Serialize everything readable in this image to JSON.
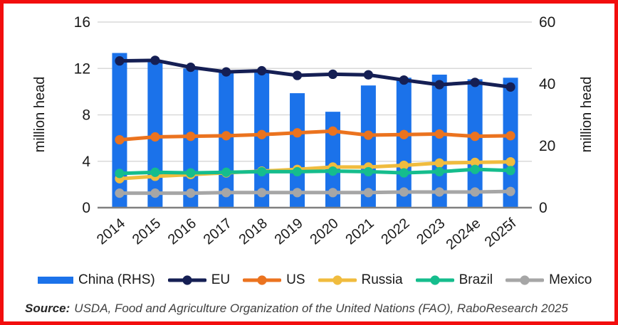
{
  "frame": {
    "border_color": "#f20d0d",
    "background": "#ffffff"
  },
  "chart_data": {
    "type": "bar",
    "subtype": "combo bar + line, dual y-axis",
    "categories": [
      "2014",
      "2015",
      "2016",
      "2017",
      "2018",
      "2019",
      "2020",
      "2021",
      "2022",
      "2023",
      "2024e",
      "2025f"
    ],
    "bar_series": {
      "name": "China (RHS)",
      "axis": "right",
      "color": "#1b72ea",
      "values": [
        50,
        47,
        45,
        44,
        44,
        37,
        31,
        39.5,
        42,
        43,
        41.5,
        42
      ]
    },
    "line_series": [
      {
        "name": "EU",
        "axis": "left",
        "color": "#151f54",
        "values": [
          12.65,
          12.7,
          12.1,
          11.7,
          11.8,
          11.4,
          11.5,
          11.45,
          11.0,
          10.6,
          10.8,
          10.4
        ]
      },
      {
        "name": "US",
        "axis": "left",
        "color": "#eb731f",
        "values": [
          5.85,
          6.1,
          6.15,
          6.2,
          6.3,
          6.45,
          6.6,
          6.25,
          6.3,
          6.35,
          6.15,
          6.2
        ]
      },
      {
        "name": "Russia",
        "axis": "left",
        "color": "#f0bc3e",
        "values": [
          2.5,
          2.7,
          2.85,
          3.0,
          3.15,
          3.3,
          3.5,
          3.5,
          3.65,
          3.85,
          3.9,
          3.95
        ]
      },
      {
        "name": "Brazil",
        "axis": "left",
        "color": "#15bd8d",
        "values": [
          2.95,
          3.05,
          3.0,
          3.05,
          3.1,
          3.1,
          3.15,
          3.1,
          3.0,
          3.1,
          3.3,
          3.2
        ]
      },
      {
        "name": "Mexico",
        "axis": "left",
        "color": "#a6a6a6",
        "values": [
          1.25,
          1.25,
          1.25,
          1.3,
          1.3,
          1.3,
          1.3,
          1.3,
          1.35,
          1.35,
          1.35,
          1.4
        ]
      }
    ],
    "left_axis": {
      "label": "million head",
      "min": 0,
      "max": 16,
      "ticks": [
        0,
        4,
        8,
        12,
        16
      ]
    },
    "right_axis": {
      "label": "million head",
      "min": 0,
      "max": 60,
      "ticks": [
        0,
        20,
        40,
        60
      ]
    },
    "grid": {
      "show": true,
      "color": "#d9d9d9",
      "axis_line_color": "#808080"
    },
    "legend_position": "bottom"
  },
  "source": {
    "prefix": "Source:",
    "text": "USDA, Food and Agriculture Organization of the United Nations (FAO), RaboResearch 2025"
  }
}
